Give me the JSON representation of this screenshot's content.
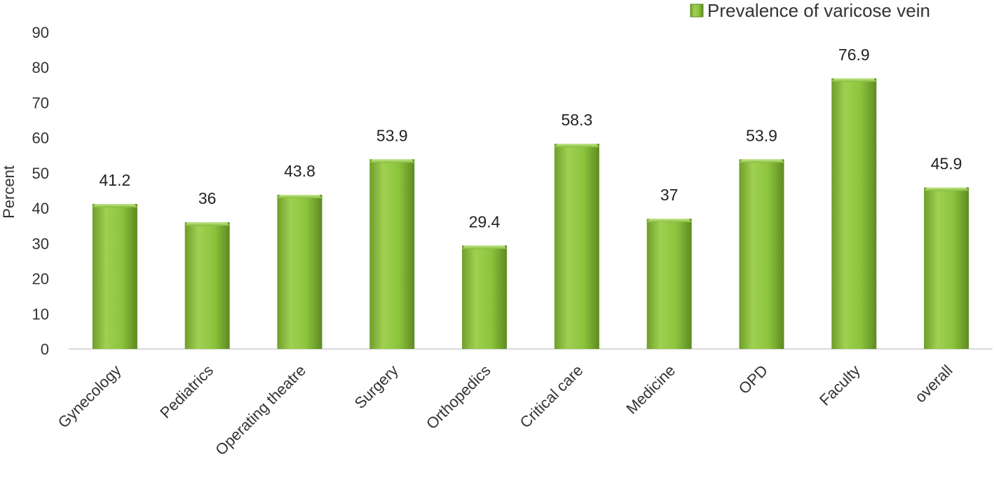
{
  "chart_data": {
    "type": "bar",
    "categories": [
      "Gynecology",
      "Pediatrics",
      "Operating theatre",
      "Surgery",
      "Orthopedics",
      "Critical care",
      "Medicine",
      "OPD",
      "Faculty",
      "overall"
    ],
    "series": [
      {
        "name": "Prevalence of varicose vein",
        "values": [
          41.2,
          36,
          43.8,
          53.9,
          29.4,
          58.3,
          37,
          53.9,
          76.9,
          45.9
        ],
        "data_labels": [
          "41.2",
          "36",
          "43.8",
          "53.9",
          "29.4",
          "58.3",
          "37",
          "53.9",
          "76.9",
          "45.9"
        ],
        "color": "#8cc43c"
      }
    ],
    "ylabel": "Percent",
    "ylim": [
      0,
      90
    ],
    "yticks": [
      "0",
      "10",
      "20",
      "30",
      "40",
      "50",
      "60",
      "70",
      "80",
      "90"
    ],
    "grid": false,
    "legend_position": "top-right"
  }
}
